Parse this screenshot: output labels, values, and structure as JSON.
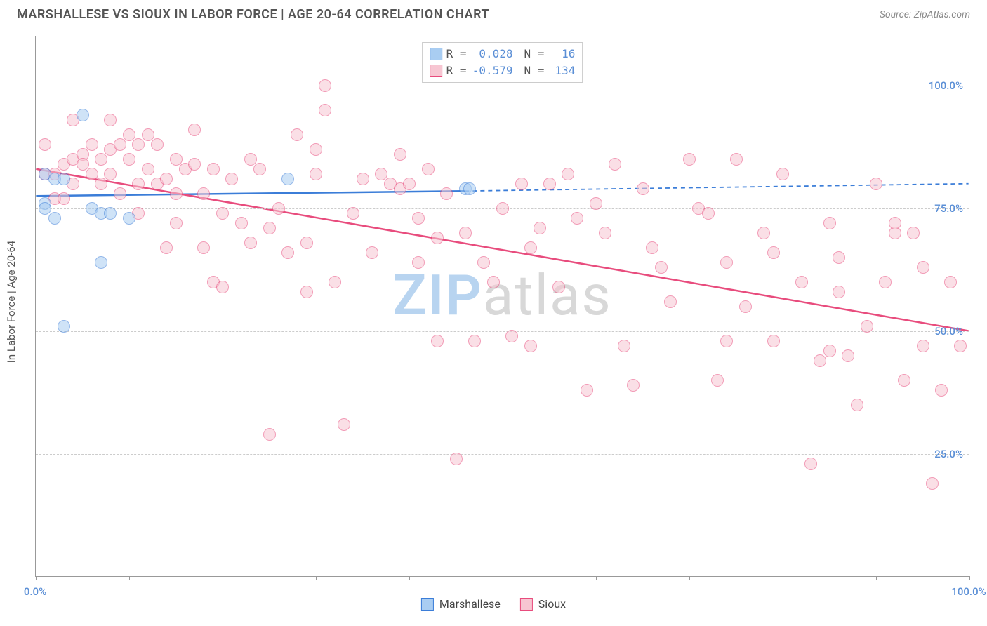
{
  "title": "MARSHALLESE VS SIOUX IN LABOR FORCE | AGE 20-64 CORRELATION CHART",
  "source": "Source: ZipAtlas.com",
  "y_axis_label": "In Labor Force | Age 20-64",
  "watermark": {
    "text_a": "ZIP",
    "text_b": "atlas",
    "color_a": "#b8d4f0",
    "color_b": "#d8d8d8"
  },
  "colors": {
    "blue_fill": "#a9cdf2",
    "blue_stroke": "#3b7dd8",
    "pink_fill": "#f7c6d2",
    "pink_stroke": "#e84c7d",
    "tick_label": "#5b8fd6",
    "grid": "#cccccc",
    "axis": "#999999",
    "title": "#555555"
  },
  "chart": {
    "type": "scatter",
    "x_domain": [
      0,
      100
    ],
    "y_domain": [
      0,
      110
    ],
    "y_ticks": [
      {
        "v": 25,
        "label": "25.0%"
      },
      {
        "v": 50,
        "label": "50.0%"
      },
      {
        "v": 75,
        "label": "75.0%"
      },
      {
        "v": 100,
        "label": "100.0%"
      }
    ],
    "x_ticks_major": [
      0,
      10,
      20,
      30,
      40,
      50,
      60,
      70,
      80,
      90,
      100
    ],
    "x_tick_labels": [
      {
        "v": 0,
        "label": "0.0%"
      },
      {
        "v": 100,
        "label": "100.0%"
      }
    ],
    "marker_radius": 9,
    "marker_stroke_width": 1.5,
    "trend_line_width": 2.5,
    "series": [
      {
        "name": "Marshallese",
        "color_fill": "#a9cdf2",
        "color_stroke": "#3b7dd8",
        "trend": {
          "x1": 0,
          "y1": 77.5,
          "x2": 46,
          "y2": 78.5,
          "dash_x2": 100,
          "dash_y2": 80
        },
        "R": "0.028",
        "N": "16",
        "points": [
          [
            1,
            82
          ],
          [
            1,
            76
          ],
          [
            1,
            75
          ],
          [
            2,
            73
          ],
          [
            2,
            81
          ],
          [
            3,
            81
          ],
          [
            3,
            51
          ],
          [
            5,
            94
          ],
          [
            6,
            75
          ],
          [
            7,
            74
          ],
          [
            7,
            64
          ],
          [
            8,
            74
          ],
          [
            10,
            73
          ],
          [
            27,
            81
          ],
          [
            46,
            79
          ],
          [
            46.5,
            79
          ]
        ]
      },
      {
        "name": "Sioux",
        "color_fill": "#f7c6d2",
        "color_stroke": "#e84c7d",
        "trend": {
          "x1": 0,
          "y1": 83,
          "x2": 100,
          "y2": 50
        },
        "R": "-0.579",
        "N": "134",
        "points": [
          [
            1,
            82
          ],
          [
            1,
            88
          ],
          [
            2,
            82
          ],
          [
            2,
            77
          ],
          [
            3,
            84
          ],
          [
            3,
            77
          ],
          [
            4,
            85
          ],
          [
            4,
            80
          ],
          [
            4,
            93
          ],
          [
            5,
            86
          ],
          [
            5,
            84
          ],
          [
            6,
            88
          ],
          [
            6,
            82
          ],
          [
            7,
            80
          ],
          [
            7,
            85
          ],
          [
            8,
            82
          ],
          [
            8,
            93
          ],
          [
            8,
            87
          ],
          [
            9,
            88
          ],
          [
            9,
            78
          ],
          [
            10,
            85
          ],
          [
            10,
            90
          ],
          [
            11,
            88
          ],
          [
            11,
            80
          ],
          [
            11,
            74
          ],
          [
            12,
            90
          ],
          [
            12,
            83
          ],
          [
            13,
            88
          ],
          [
            13,
            80
          ],
          [
            14,
            81
          ],
          [
            14,
            67
          ],
          [
            15,
            85
          ],
          [
            15,
            78
          ],
          [
            15,
            72
          ],
          [
            16,
            83
          ],
          [
            17,
            84
          ],
          [
            17,
            91
          ],
          [
            18,
            78
          ],
          [
            18,
            67
          ],
          [
            19,
            83
          ],
          [
            19,
            60
          ],
          [
            20,
            74
          ],
          [
            20,
            59
          ],
          [
            21,
            81
          ],
          [
            22,
            72
          ],
          [
            23,
            85
          ],
          [
            23,
            68
          ],
          [
            24,
            83
          ],
          [
            25,
            71
          ],
          [
            25,
            29
          ],
          [
            26,
            75
          ],
          [
            27,
            66
          ],
          [
            28,
            90
          ],
          [
            29,
            68
          ],
          [
            29,
            58
          ],
          [
            30,
            82
          ],
          [
            30,
            87
          ],
          [
            31,
            95
          ],
          [
            31,
            100
          ],
          [
            32,
            60
          ],
          [
            33,
            31
          ],
          [
            34,
            74
          ],
          [
            35,
            81
          ],
          [
            36,
            66
          ],
          [
            37,
            82
          ],
          [
            38,
            80
          ],
          [
            39,
            79
          ],
          [
            39,
            86
          ],
          [
            40,
            80
          ],
          [
            41,
            73
          ],
          [
            41,
            64
          ],
          [
            42,
            83
          ],
          [
            43,
            69
          ],
          [
            43,
            48
          ],
          [
            44,
            78
          ],
          [
            45,
            24
          ],
          [
            46,
            70
          ],
          [
            47,
            48
          ],
          [
            48,
            64
          ],
          [
            49,
            60
          ],
          [
            50,
            75
          ],
          [
            51,
            49
          ],
          [
            52,
            80
          ],
          [
            53,
            67
          ],
          [
            53,
            47
          ],
          [
            54,
            71
          ],
          [
            55,
            80
          ],
          [
            56,
            59
          ],
          [
            57,
            82
          ],
          [
            58,
            73
          ],
          [
            59,
            38
          ],
          [
            60,
            76
          ],
          [
            61,
            70
          ],
          [
            62,
            84
          ],
          [
            63,
            47
          ],
          [
            64,
            39
          ],
          [
            65,
            79
          ],
          [
            66,
            67
          ],
          [
            67,
            63
          ],
          [
            68,
            56
          ],
          [
            70,
            85
          ],
          [
            71,
            75
          ],
          [
            72,
            74
          ],
          [
            73,
            40
          ],
          [
            74,
            64
          ],
          [
            75,
            85
          ],
          [
            76,
            55
          ],
          [
            78,
            70
          ],
          [
            79,
            48
          ],
          [
            80,
            82
          ],
          [
            82,
            60
          ],
          [
            83,
            23
          ],
          [
            84,
            44
          ],
          [
            85,
            46
          ],
          [
            85,
            72
          ],
          [
            86,
            65
          ],
          [
            87,
            45
          ],
          [
            88,
            35
          ],
          [
            89,
            51
          ],
          [
            90,
            80
          ],
          [
            91,
            60
          ],
          [
            92,
            70
          ],
          [
            93,
            40
          ],
          [
            94,
            70
          ],
          [
            95,
            47
          ],
          [
            95,
            63
          ],
          [
            96,
            19
          ],
          [
            97,
            38
          ],
          [
            98,
            60
          ],
          [
            99,
            47
          ],
          [
            92,
            72
          ],
          [
            86,
            58
          ],
          [
            79,
            66
          ],
          [
            74,
            48
          ]
        ]
      }
    ]
  },
  "legend_bottom": [
    {
      "label": "Marshallese",
      "fill": "#a9cdf2",
      "stroke": "#3b7dd8"
    },
    {
      "label": "Sioux",
      "fill": "#f7c6d2",
      "stroke": "#e84c7d"
    }
  ]
}
